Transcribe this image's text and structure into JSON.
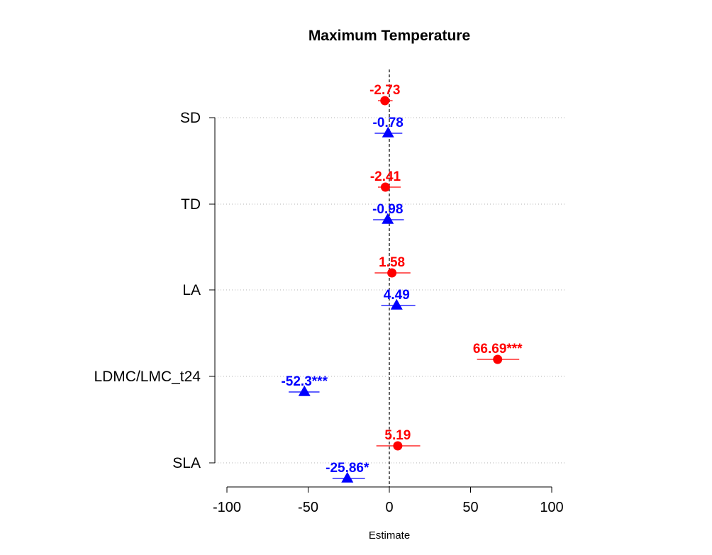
{
  "chart_data": {
    "type": "scatter",
    "title": "Maximum Temperature",
    "xlabel": "Estimate",
    "ylabel": "",
    "xlim": [
      -100,
      100
    ],
    "xticks": [
      -100,
      -50,
      0,
      50,
      100
    ],
    "reference_line": 0,
    "categories": [
      "SD",
      "TD",
      "LA",
      "LDMC/LMC_t24",
      "SLA"
    ],
    "grid": "horizontal dotted at categories",
    "series": [
      {
        "color": "#ff0000",
        "marker": "circle",
        "points": [
          {
            "category": "SD",
            "estimate": -2.73,
            "ci": [
              -7,
              2
            ],
            "label": "-2.73"
          },
          {
            "category": "TD",
            "estimate": -2.41,
            "ci": [
              -7,
              7
            ],
            "label": "-2.41"
          },
          {
            "category": "LA",
            "estimate": 1.58,
            "ci": [
              -9,
              13
            ],
            "label": "1.58"
          },
          {
            "category": "LDMC/LMC_t24",
            "estimate": 66.69,
            "ci": [
              54,
              80
            ],
            "label": "66.69***"
          },
          {
            "category": "SLA",
            "estimate": 5.19,
            "ci": [
              -8,
              19
            ],
            "label": "5.19"
          }
        ]
      },
      {
        "color": "#0000ff",
        "marker": "triangle",
        "points": [
          {
            "category": "SD",
            "estimate": -0.78,
            "ci": [
              -9,
              8
            ],
            "label": "-0.78"
          },
          {
            "category": "TD",
            "estimate": -0.98,
            "ci": [
              -10,
              9
            ],
            "label": "-0.98"
          },
          {
            "category": "LA",
            "estimate": 4.49,
            "ci": [
              -5,
              16
            ],
            "label": "4.49"
          },
          {
            "category": "LDMC/LMC_t24",
            "estimate": -52.3,
            "ci": [
              -62,
              -43
            ],
            "label": "-52.3***"
          },
          {
            "category": "SLA",
            "estimate": -25.86,
            "ci": [
              -35,
              -15
            ],
            "label": "-25.86*"
          }
        ]
      }
    ]
  }
}
